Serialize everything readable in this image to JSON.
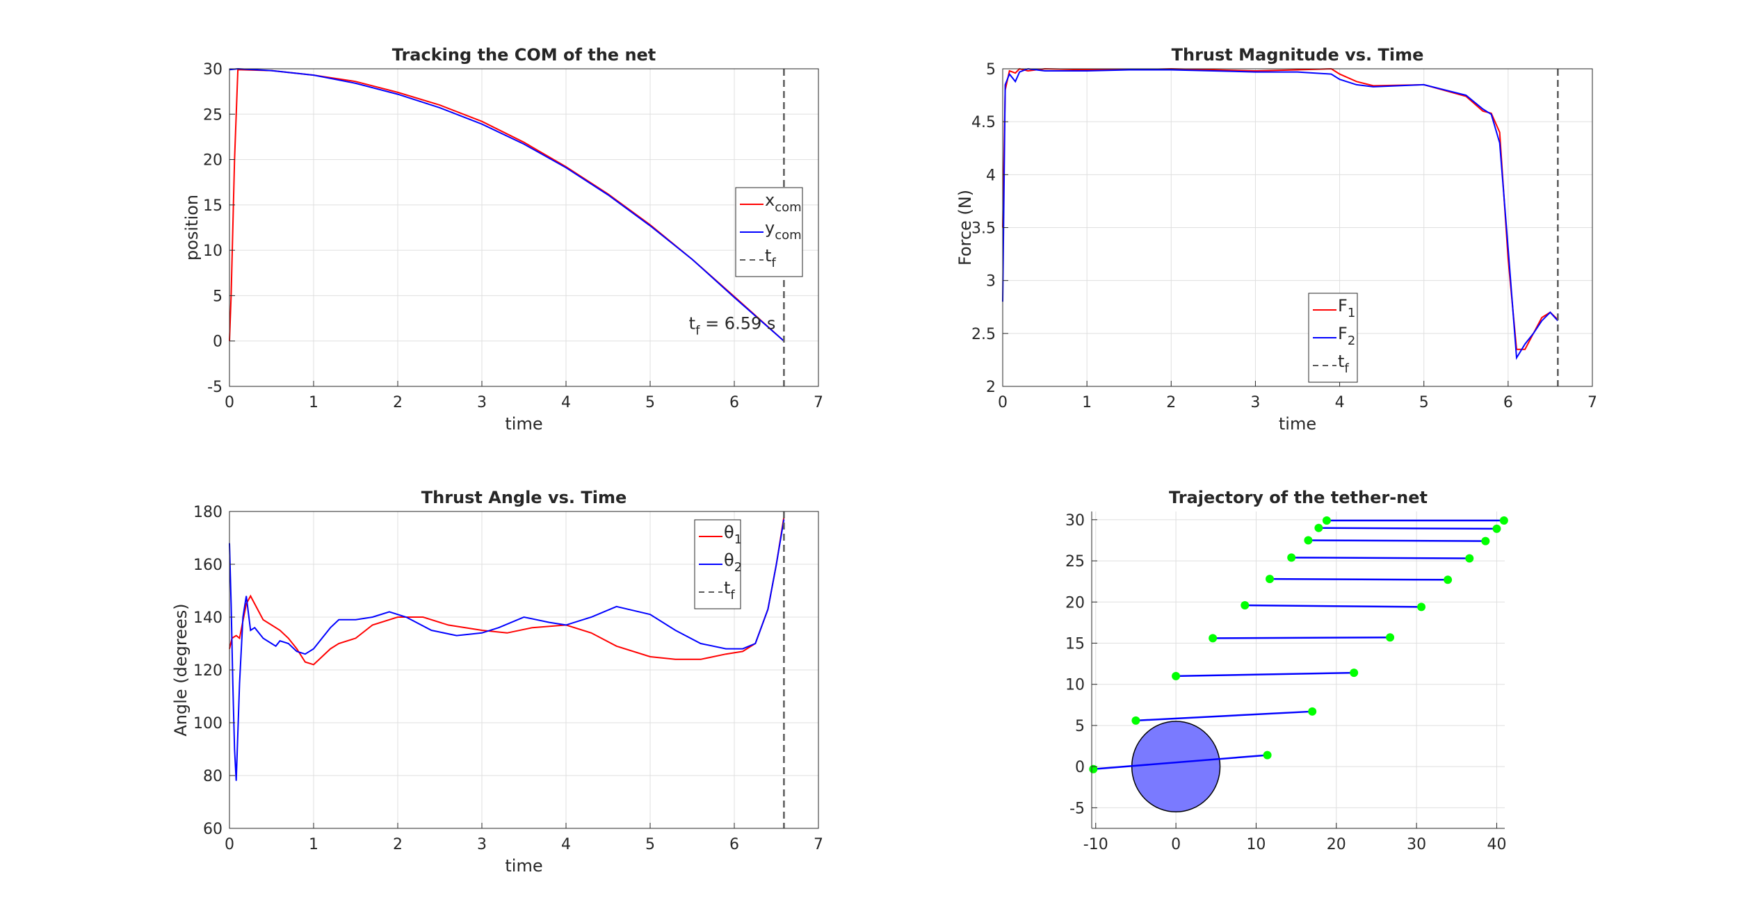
{
  "chart_data": [
    {
      "type": "line",
      "title": "Tracking the COM of the net",
      "xlabel": "time",
      "ylabel": "position",
      "xlim": [
        0,
        7
      ],
      "ylim": [
        -5,
        30
      ],
      "xticks": [
        "0",
        "1",
        "2",
        "3",
        "4",
        "5",
        "6",
        "7"
      ],
      "yticks": [
        "-5",
        "0",
        "5",
        "10",
        "15",
        "20",
        "25",
        "30"
      ],
      "grid": true,
      "legend_position": "right",
      "series": [
        {
          "name": "x",
          "name_sub": "com",
          "color": "#ff0000",
          "x": [
            0,
            0.02,
            0.06,
            0.1,
            0.5,
            1,
            1.5,
            2,
            2.5,
            3,
            3.5,
            4,
            4.5,
            5,
            5.5,
            6,
            6.59
          ],
          "y": [
            0,
            5,
            20,
            29.9,
            29.8,
            29.3,
            28.6,
            27.4,
            26,
            24.2,
            21.9,
            19.2,
            16.2,
            12.8,
            9,
            4.9,
            0
          ]
        },
        {
          "name": "y",
          "name_sub": "com",
          "color": "#0000ff",
          "x": [
            0,
            0.1,
            0.5,
            1,
            1.5,
            2,
            2.5,
            3,
            3.5,
            4,
            4.5,
            5,
            5.5,
            6,
            6.59
          ],
          "y": [
            29.9,
            30,
            29.8,
            29.3,
            28.4,
            27.2,
            25.7,
            23.9,
            21.7,
            19.1,
            16.1,
            12.7,
            9,
            4.8,
            0
          ]
        }
      ],
      "vline": {
        "name": "t",
        "name_sub": "f",
        "x": 6.59,
        "color": "#595959"
      },
      "annotation": {
        "prefix": "t",
        "sub": "f",
        "text": " = 6.59 s",
        "x": 6.59,
        "y": 1
      }
    },
    {
      "type": "line",
      "title": "Thrust Magnitude vs. Time",
      "xlabel": "time",
      "ylabel": "Force (N)",
      "xlim": [
        0,
        7
      ],
      "ylim": [
        2,
        5
      ],
      "xticks": [
        "0",
        "1",
        "2",
        "3",
        "4",
        "5",
        "6",
        "7"
      ],
      "yticks": [
        "2",
        "2.5",
        "3",
        "3.5",
        "4",
        "4.5",
        "5"
      ],
      "grid": true,
      "legend_position": "bottom-center",
      "series": [
        {
          "name": "F",
          "name_sub": "1",
          "color": "#ff0000",
          "x": [
            0,
            0.03,
            0.08,
            0.15,
            0.2,
            0.3,
            0.5,
            1,
            1.5,
            2,
            2.5,
            3,
            3.5,
            3.9,
            4,
            4.2,
            4.4,
            5,
            5.5,
            5.7,
            5.8,
            5.9,
            6,
            6.1,
            6.2,
            6.3,
            6.4,
            6.5,
            6.59
          ],
          "y": [
            3.5,
            4.8,
            4.98,
            4.96,
            5,
            4.98,
            5,
            4.99,
            4.99,
            5,
            4.99,
            4.98,
            4.99,
            5,
            4.95,
            4.88,
            4.84,
            4.85,
            4.74,
            4.6,
            4.58,
            4.4,
            3.2,
            2.35,
            2.35,
            2.5,
            2.65,
            2.7,
            2.63
          ]
        },
        {
          "name": "F",
          "name_sub": "2",
          "color": "#0000ff",
          "x": [
            0,
            0.03,
            0.08,
            0.15,
            0.2,
            0.3,
            0.5,
            1,
            1.5,
            2,
            2.5,
            3,
            3.5,
            3.9,
            4,
            4.2,
            4.4,
            5,
            5.5,
            5.7,
            5.8,
            5.9,
            6,
            6.1,
            6.2,
            6.3,
            6.4,
            6.5,
            6.59
          ],
          "y": [
            2.8,
            4.85,
            4.95,
            4.88,
            4.97,
            5,
            4.98,
            4.98,
            4.99,
            4.99,
            4.98,
            4.97,
            4.97,
            4.95,
            4.9,
            4.85,
            4.83,
            4.85,
            4.75,
            4.62,
            4.57,
            4.3,
            3.3,
            2.27,
            2.4,
            2.5,
            2.62,
            2.7,
            2.62
          ]
        }
      ],
      "vline": {
        "name": "t",
        "name_sub": "f",
        "x": 6.59,
        "color": "#595959"
      }
    },
    {
      "type": "line",
      "title": "Thrust Angle vs. Time",
      "xlabel": "time",
      "ylabel": "Angle (degrees)",
      "xlim": [
        0,
        7
      ],
      "ylim": [
        60,
        180
      ],
      "xticks": [
        "0",
        "1",
        "2",
        "3",
        "4",
        "5",
        "6",
        "7"
      ],
      "yticks": [
        "60",
        "80",
        "100",
        "120",
        "140",
        "160",
        "180"
      ],
      "grid": true,
      "legend_position": "top-right",
      "series": [
        {
          "name": "θ",
          "name_sub": "1",
          "color": "#ff0000",
          "x": [
            0,
            0.03,
            0.08,
            0.12,
            0.2,
            0.25,
            0.3,
            0.4,
            0.5,
            0.6,
            0.7,
            0.8,
            0.9,
            1,
            1.1,
            1.2,
            1.3,
            1.5,
            1.7,
            2,
            2.3,
            2.6,
            3,
            3.3,
            3.6,
            4,
            4.3,
            4.6,
            5,
            5.3,
            5.6,
            5.9,
            6.1,
            6.25,
            6.4,
            6.5,
            6.59
          ],
          "y": [
            128,
            132,
            133,
            132,
            145,
            148,
            145,
            139,
            137,
            135,
            132,
            128,
            123,
            122,
            125,
            128,
            130,
            132,
            137,
            140,
            140,
            137,
            135,
            134,
            136,
            137,
            134,
            129,
            125,
            124,
            124,
            126,
            127,
            130,
            143,
            160,
            178
          ]
        },
        {
          "name": "θ",
          "name_sub": "2",
          "color": "#0000ff",
          "x": [
            0,
            0.02,
            0.04,
            0.06,
            0.08,
            0.12,
            0.16,
            0.2,
            0.25,
            0.3,
            0.4,
            0.5,
            0.55,
            0.6,
            0.7,
            0.8,
            0.9,
            1,
            1.1,
            1.2,
            1.3,
            1.5,
            1.7,
            1.9,
            2.1,
            2.4,
            2.7,
            3,
            3.2,
            3.5,
            3.8,
            4,
            4.3,
            4.6,
            5,
            5.3,
            5.6,
            5.9,
            6.1,
            6.25,
            6.4,
            6.5,
            6.59
          ],
          "y": [
            168,
            145,
            115,
            90,
            78,
            115,
            140,
            148,
            135,
            136,
            132,
            130,
            129,
            131,
            130,
            127,
            126,
            128,
            132,
            136,
            139,
            139,
            140,
            142,
            140,
            135,
            133,
            134,
            136,
            140,
            138,
            137,
            140,
            144,
            141,
            135,
            130,
            128,
            128,
            130,
            143,
            160,
            177
          ]
        }
      ],
      "vline": {
        "name": "t",
        "name_sub": "f",
        "x": 6.59,
        "color": "#595959"
      }
    },
    {
      "type": "scatter",
      "title": "Trajectory of the tether-net",
      "xlabel": "",
      "ylabel": "",
      "xlim": [
        -10.5,
        41
      ],
      "ylim": [
        -7.5,
        31
      ],
      "xticks": [
        "-10",
        "0",
        "10",
        "20",
        "30",
        "40"
      ],
      "yticks": [
        "-5",
        "0",
        "5",
        "10",
        "15",
        "20",
        "25",
        "30"
      ],
      "grid": true,
      "line_color": "#0000ff",
      "point_color": "#00ff00",
      "target": {
        "cx": 0,
        "cy": 0,
        "r": 5.5,
        "fill": "#7a7aff"
      },
      "segments": [
        {
          "x1": -10.3,
          "y1": -0.3,
          "x2": 11.4,
          "y2": 1.4
        },
        {
          "x1": -5,
          "y1": 5.6,
          "x2": 17,
          "y2": 6.7
        },
        {
          "x1": 0,
          "y1": 11,
          "x2": 22.2,
          "y2": 11.4
        },
        {
          "x1": 4.6,
          "y1": 15.6,
          "x2": 26.7,
          "y2": 15.7
        },
        {
          "x1": 8.6,
          "y1": 19.6,
          "x2": 30.6,
          "y2": 19.4
        },
        {
          "x1": 11.7,
          "y1": 22.8,
          "x2": 33.9,
          "y2": 22.7
        },
        {
          "x1": 14.4,
          "y1": 25.4,
          "x2": 36.6,
          "y2": 25.3
        },
        {
          "x1": 16.5,
          "y1": 27.5,
          "x2": 38.6,
          "y2": 27.4
        },
        {
          "x1": 17.8,
          "y1": 29,
          "x2": 40,
          "y2": 28.9
        },
        {
          "x1": 18.8,
          "y1": 29.9,
          "x2": 40.9,
          "y2": 29.9
        }
      ]
    }
  ]
}
